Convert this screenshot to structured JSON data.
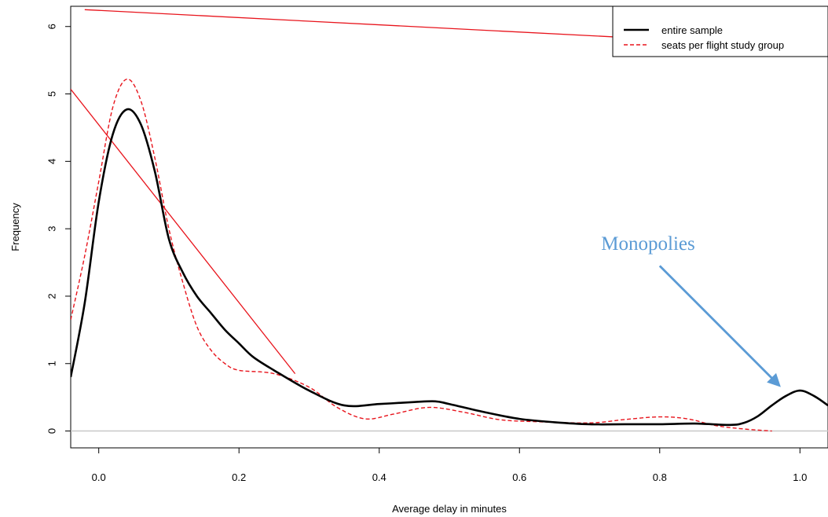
{
  "chart_data": {
    "type": "line",
    "xlabel": "Average delay in minutes",
    "ylabel": "Frequency",
    "xlim": [
      -0.04,
      1.04
    ],
    "ylim": [
      -0.25,
      6.3
    ],
    "x_ticks": [
      0.0,
      0.2,
      0.4,
      0.6,
      0.8,
      1.0
    ],
    "x_tick_labels": [
      "0.0",
      "0.2",
      "0.4",
      "0.6",
      "0.8",
      "1.0"
    ],
    "y_ticks": [
      0,
      1,
      2,
      3,
      4,
      5,
      6
    ],
    "y_tick_labels": [
      "0",
      "1",
      "2",
      "3",
      "4",
      "5",
      "6"
    ],
    "legend_position": "top-right",
    "series": [
      {
        "name": "entire sample",
        "style": "solid",
        "color": "#000000",
        "x": [
          -0.04,
          -0.02,
          0.0,
          0.02,
          0.04,
          0.06,
          0.08,
          0.1,
          0.12,
          0.14,
          0.16,
          0.18,
          0.2,
          0.22,
          0.25,
          0.3,
          0.35,
          0.4,
          0.45,
          0.48,
          0.5,
          0.55,
          0.6,
          0.65,
          0.7,
          0.75,
          0.8,
          0.85,
          0.9,
          0.92,
          0.94,
          0.96,
          0.98,
          1.0,
          1.02,
          1.04
        ],
        "y": [
          0.8,
          1.9,
          3.4,
          4.4,
          4.77,
          4.55,
          3.85,
          2.85,
          2.35,
          2.0,
          1.75,
          1.5,
          1.3,
          1.1,
          0.9,
          0.6,
          0.38,
          0.4,
          0.43,
          0.44,
          0.4,
          0.28,
          0.18,
          0.13,
          0.1,
          0.1,
          0.1,
          0.11,
          0.09,
          0.12,
          0.22,
          0.38,
          0.52,
          0.6,
          0.52,
          0.38
        ]
      },
      {
        "name": "seats per flight study group",
        "style": "dashed",
        "color": "#e8141c",
        "x": [
          -0.04,
          -0.02,
          0.0,
          0.02,
          0.04,
          0.06,
          0.08,
          0.1,
          0.12,
          0.14,
          0.16,
          0.18,
          0.2,
          0.25,
          0.3,
          0.34,
          0.38,
          0.42,
          0.47,
          0.52,
          0.57,
          0.62,
          0.7,
          0.75,
          0.8,
          0.84,
          0.88,
          0.92,
          0.96
        ],
        "y": [
          1.65,
          2.6,
          3.7,
          4.8,
          5.22,
          4.9,
          4.05,
          3.0,
          2.2,
          1.55,
          1.2,
          1.0,
          0.9,
          0.85,
          0.65,
          0.35,
          0.18,
          0.25,
          0.35,
          0.28,
          0.17,
          0.14,
          0.12,
          0.17,
          0.21,
          0.18,
          0.08,
          0.03,
          0.0
        ]
      }
    ],
    "reference_lines": [
      {
        "x": [
          -0.04,
          0.28
        ],
        "y": [
          5.07,
          0.85
        ],
        "color": "#e8141c"
      },
      {
        "x": [
          -0.02,
          0.97
        ],
        "y": [
          6.25,
          5.72
        ],
        "color": "#e8141c"
      }
    ],
    "annotations": [
      {
        "text": "Monopolies",
        "color": "#5b9bd5",
        "arrow_from": [
          0.8,
          2.45
        ],
        "arrow_to": [
          0.97,
          0.68
        ]
      }
    ]
  }
}
